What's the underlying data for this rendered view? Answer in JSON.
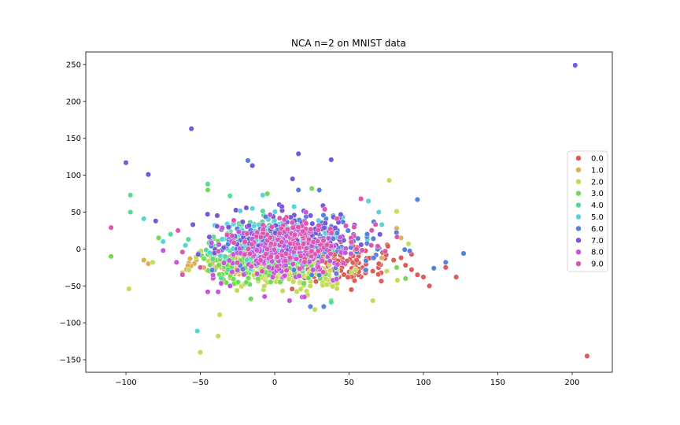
{
  "chart_data": {
    "type": "scatter",
    "title": "NCA n=2 on MNIST data",
    "xlabel": "",
    "ylabel": "",
    "xlim": [
      -127,
      227
    ],
    "ylim": [
      -167,
      267
    ],
    "xticks": [
      -100,
      -50,
      0,
      50,
      100,
      150,
      200
    ],
    "yticks": [
      -150,
      -100,
      -50,
      0,
      50,
      100,
      150,
      200,
      250
    ],
    "xtick_labels": [
      "−100",
      "−50",
      "0",
      "50",
      "100",
      "150",
      "200"
    ],
    "ytick_labels": [
      "−150",
      "−100",
      "−50",
      "0",
      "50",
      "100",
      "150",
      "200",
      "250"
    ],
    "grid": false,
    "legend_position": "right",
    "series": [
      {
        "name": "0.0",
        "color": "#db5f57",
        "cluster": {
          "cx": 35,
          "cy": -18,
          "sx": 20,
          "sy": 14,
          "n": 170
        },
        "points": [
          [
            210,
            -145
          ],
          [
            122,
            -38
          ],
          [
            115,
            -25
          ],
          [
            104,
            -50
          ],
          [
            100,
            -38
          ],
          [
            96,
            -35
          ],
          [
            92,
            -28
          ],
          [
            88,
            -22
          ],
          [
            85,
            -12
          ],
          [
            80,
            -15
          ],
          [
            75,
            -8
          ],
          [
            70,
            -20
          ],
          [
            66,
            -30
          ]
        ]
      },
      {
        "name": "1.0",
        "color": "#dbb157",
        "cluster": {
          "cx": -18,
          "cy": -20,
          "sx": 16,
          "sy": 9,
          "n": 200
        },
        "points": [
          [
            -85,
            -20
          ],
          [
            -88,
            -15
          ],
          [
            85,
            15
          ],
          [
            82,
            28
          ],
          [
            72,
            -12
          ]
        ]
      },
      {
        "name": "2.0",
        "color": "#c4db57",
        "cluster": {
          "cx": 12,
          "cy": -28,
          "sx": 24,
          "sy": 16,
          "n": 170
        },
        "points": [
          [
            -98,
            -54
          ],
          [
            -50,
            -140
          ],
          [
            -38,
            -118
          ],
          [
            -37,
            -89
          ],
          [
            -82,
            -18
          ],
          [
            -62,
            -32
          ],
          [
            77,
            93
          ],
          [
            90,
            7
          ],
          [
            82,
            51
          ],
          [
            66,
            -70
          ],
          [
            27,
            -82
          ]
        ]
      },
      {
        "name": "3.0",
        "color": "#71db57",
        "cluster": {
          "cx": -12,
          "cy": -15,
          "sx": 20,
          "sy": 16,
          "n": 150
        },
        "points": [
          [
            -110,
            -10
          ],
          [
            -78,
            15
          ],
          [
            -45,
            80
          ],
          [
            25,
            82
          ],
          [
            -5,
            75
          ],
          [
            88,
            -40
          ],
          [
            82,
            -25
          ],
          [
            38,
            -70
          ]
        ]
      },
      {
        "name": "4.0",
        "color": "#57db94",
        "cluster": {
          "cx": -5,
          "cy": 5,
          "sx": 20,
          "sy": 18,
          "n": 130
        },
        "points": [
          [
            -97,
            73
          ],
          [
            -97,
            50
          ],
          [
            -45,
            88
          ],
          [
            -30,
            72
          ],
          [
            -58,
            13
          ],
          [
            -70,
            20
          ],
          [
            38,
            -72
          ]
        ]
      },
      {
        "name": "5.0",
        "color": "#57d3db",
        "cluster": {
          "cx": 5,
          "cy": 15,
          "sx": 22,
          "sy": 15,
          "n": 150
        },
        "points": [
          [
            -88,
            41
          ],
          [
            -52,
            -111
          ],
          [
            -15,
            55
          ],
          [
            -8,
            73
          ],
          [
            63,
            65
          ],
          [
            70,
            50
          ],
          [
            72,
            33
          ],
          [
            -60,
            5
          ],
          [
            -75,
            10
          ]
        ]
      },
      {
        "name": "6.0",
        "color": "#5782db",
        "cluster": {
          "cx": 15,
          "cy": 8,
          "sx": 26,
          "sy": 16,
          "n": 160
        },
        "points": [
          [
            127,
            -6
          ],
          [
            115,
            -18
          ],
          [
            107,
            -26
          ],
          [
            96,
            67
          ],
          [
            30,
            80
          ],
          [
            16,
            80
          ],
          [
            33,
            -78
          ],
          [
            24,
            -78
          ],
          [
            -18,
            120
          ]
        ]
      },
      {
        "name": "7.0",
        "color": "#7957db",
        "cluster": {
          "cx": 8,
          "cy": 20,
          "sx": 24,
          "sy": 16,
          "n": 140
        },
        "points": [
          [
            202,
            249
          ],
          [
            -100,
            117
          ],
          [
            -85,
            101
          ],
          [
            -56,
            163
          ],
          [
            -15,
            113
          ],
          [
            12,
            95
          ],
          [
            16,
            129
          ],
          [
            38,
            121
          ],
          [
            -80,
            38
          ],
          [
            -55,
            33
          ]
        ]
      },
      {
        "name": "8.0",
        "color": "#c457db",
        "cluster": {
          "cx": 5,
          "cy": -10,
          "sx": 24,
          "sy": 18,
          "n": 150
        },
        "points": [
          [
            -75,
            -2
          ],
          [
            -66,
            -18
          ],
          [
            -45,
            -58
          ],
          [
            -38,
            -58
          ],
          [
            -30,
            -50
          ],
          [
            20,
            -65
          ],
          [
            10,
            -70
          ]
        ]
      },
      {
        "name": "9.0",
        "color": "#db57b2",
        "cluster": {
          "cx": 15,
          "cy": 10,
          "sx": 22,
          "sy": 16,
          "n": 140
        },
        "points": [
          [
            -110,
            29
          ],
          [
            -65,
            25
          ],
          [
            -50,
            -25
          ],
          [
            58,
            68
          ],
          [
            65,
            5
          ],
          [
            55,
            0
          ]
        ]
      }
    ]
  }
}
